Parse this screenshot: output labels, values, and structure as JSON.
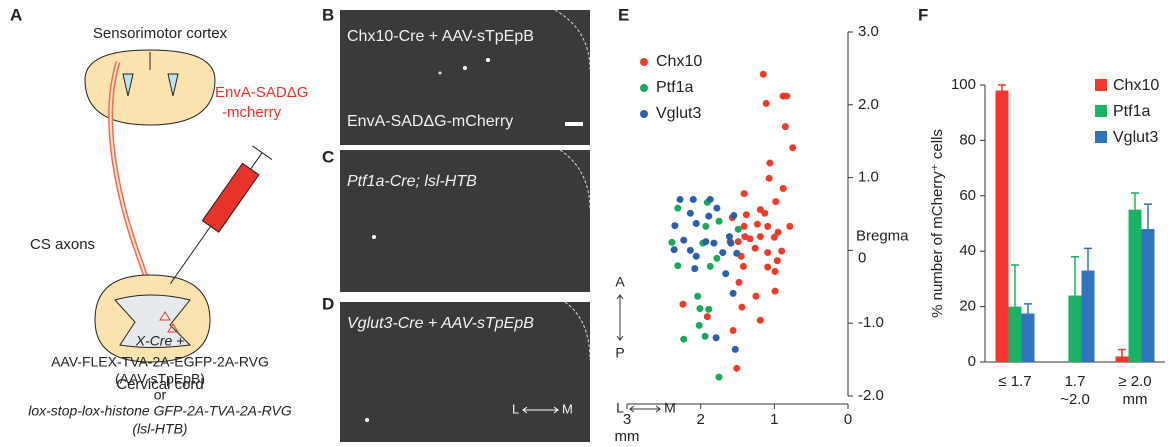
{
  "panel_a": {
    "letter": "A",
    "top": "Sensorimotor cortex",
    "virus": [
      "EnvA-SADΔG",
      "-mcherry"
    ],
    "axons": "CS axons",
    "bottom": "Cervical cord",
    "notes": [
      "X-Cre +",
      "AAV-FLEX-TVA-2A-EGFP-2A-RVG",
      "(AAV-sTpEpB)",
      "or",
      "lox-stop-lox-histone GFP-2A-TVA-2A-RVG",
      "(lsl-HTB)"
    ]
  },
  "panel_b": {
    "letter": "B",
    "label": "Chx10-Cre + AAV-sTpEpB",
    "sublabel": "EnvA-SADΔG-mCherry"
  },
  "panel_c": {
    "letter": "C",
    "label": "Ptf1a-Cre; lsl-HTB"
  },
  "panel_d": {
    "letter": "D",
    "label": "Vglut3-Cre + AAV-sTpEpB",
    "lm": [
      "L",
      "M"
    ]
  },
  "chart_data": [
    {
      "type": "scatter",
      "letter": "E",
      "xlabel": "mm",
      "xlim": [
        3,
        0
      ],
      "xticks": [
        3,
        2,
        1,
        0
      ],
      "ylim": [
        -2,
        3
      ],
      "yticks": [
        {
          "value": -2,
          "label": "-2.0"
        },
        {
          "value": -1,
          "label": "-1.0"
        },
        0,
        {
          "value": 1,
          "label": "1.0"
        },
        {
          "value": 2,
          "label": "2.0"
        },
        {
          "value": 3,
          "label": "3.0"
        }
      ],
      "annotations": [
        "Bregma",
        "A",
        "P",
        "L",
        "M"
      ],
      "series": [
        {
          "name": "Chx10",
          "color": "#ef3b2c",
          "x": [
            1.15,
            0.88,
            0.83,
            1.11,
            0.85,
            0.75,
            1.06,
            1.07,
            0.88,
            1.41,
            0.98,
            1.19,
            1.13,
            1.38,
            0.79,
            1.41,
            1.57,
            1.23,
            1.09,
            0.95,
            1.19,
            1.0,
            1.4,
            1.33,
            1.6,
            1.49,
            1.26,
            1.45,
            1.09,
            0.9,
            0.96,
            1.42,
            1.09,
            0.99,
            1.48,
            0.99,
            1.25,
            2.24,
            1.44,
            1.91,
            1.19,
            1.56,
            1.51
          ],
          "values": [
            2.42,
            2.12,
            2.12,
            2.02,
            1.7,
            1.41,
            1.2,
            0.99,
            0.85,
            0.78,
            0.67,
            0.56,
            0.51,
            0.49,
            0.33,
            0.33,
            0.45,
            0.36,
            0.33,
            0.25,
            0.19,
            0.18,
            0.19,
            0.16,
            0.12,
            0.12,
            0.03,
            -0.08,
            -0.03,
            -0.01,
            -0.14,
            -0.22,
            -0.23,
            -0.29,
            -0.44,
            -0.56,
            -0.63,
            -0.74,
            -0.78,
            -0.91,
            -0.96,
            -1.1,
            -1.62
          ]
        },
        {
          "name": "Ptf1a",
          "color": "#1aa85a",
          "x": [
            1.91,
            2.31,
            1.75,
            1.93,
            1.49,
            2.39,
            1.97,
            2.31,
            1.87,
            1.78,
            2.04,
            2.01,
            1.89,
            2.02,
            1.94,
            2.23,
            1.75
          ],
          "values": [
            0.66,
            0.58,
            0.4,
            0.33,
            0.29,
            0.11,
            0.1,
            -0.21,
            -0.22,
            -0.11,
            -0.63,
            -0.8,
            -0.81,
            -1.03,
            -1.18,
            -1.22,
            -1.74
          ]
        },
        {
          "name": "Vglut3",
          "color": "#2b5fae",
          "x": [
            2.28,
            2.1,
            1.87,
            1.78,
            2.14,
            1.55,
            2.06,
            1.89,
            2.35,
            1.61,
            2.23,
            1.93,
            1.82,
            1.59,
            2.36,
            2.14,
            1.7,
            2.06,
            1.51,
            2.08,
            1.66,
            1.56,
            1.79,
            1.53
          ],
          "values": [
            0.7,
            0.7,
            0.7,
            0.58,
            0.51,
            0.48,
            0.37,
            0.47,
            0.34,
            0.19,
            0.14,
            0.12,
            0.1,
            0.1,
            0.01,
            0.0,
            -0.03,
            -0.08,
            -0.04,
            -0.25,
            -0.32,
            -0.59,
            -1.2,
            -1.36
          ]
        }
      ]
    },
    {
      "type": "bar",
      "letter": "F",
      "ylabel": "% number of mCherry⁺ cells",
      "xlabel": "mm",
      "categories": [
        "≤ 1.7",
        "1.7\n~2.0",
        "≥ 2.0"
      ],
      "ylim": [
        0,
        100
      ],
      "yticks": [
        0,
        20,
        40,
        60,
        80,
        100
      ],
      "series": [
        {
          "name": "Chx10",
          "color": "#f4362c",
          "values": [
            98,
            null,
            2
          ],
          "errors": [
            2,
            null,
            2.5
          ]
        },
        {
          "name": "Ptf1a",
          "color": "#1ab366",
          "values": [
            20,
            24,
            55
          ],
          "errors": [
            15,
            14,
            6
          ]
        },
        {
          "name": "Vglut3",
          "color": "#3173bf",
          "values": [
            17.5,
            33,
            48
          ],
          "errors": [
            3.5,
            8,
            9
          ]
        }
      ]
    }
  ]
}
